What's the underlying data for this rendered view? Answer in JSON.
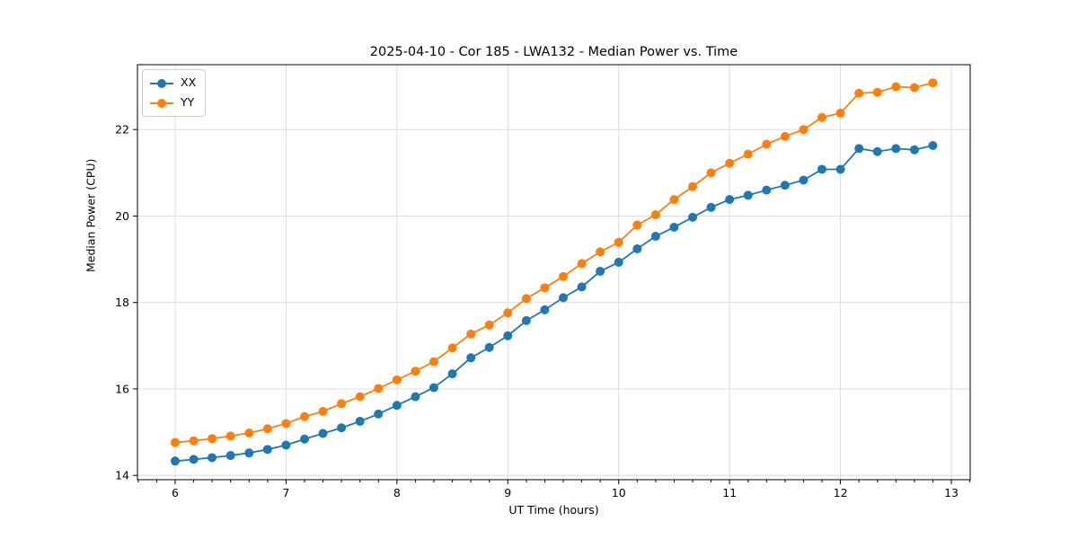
{
  "chart": {
    "title": "2025-04-10 - Cor 185 - LWA132 - Median Power vs. Time",
    "xlabel": "UT Time (hours)",
    "ylabel": "Median Power (CPU)"
  },
  "legend": {
    "position": "upper-left",
    "items": [
      {
        "label": "XX",
        "color": "#1f77b4"
      },
      {
        "label": "YY",
        "color": "#ff7f0e"
      }
    ]
  },
  "colors": {
    "series_xx": "#1f77b4",
    "series_yy": "#ff7f0e",
    "grid": "#dcdcdc",
    "axis": "#000000",
    "background": "#ffffff"
  },
  "chart_data": {
    "type": "line",
    "title": "2025-04-10 - Cor 185 - LWA132 - Median Power vs. Time",
    "xlabel": "UT Time (hours)",
    "ylabel": "Median Power (CPU)",
    "grid": true,
    "legend_position": "upper left",
    "xlim": [
      5.66,
      13.17
    ],
    "ylim": [
      13.9,
      23.5
    ],
    "xticks": [
      6,
      7,
      8,
      9,
      10,
      11,
      12,
      13
    ],
    "yticks": [
      14,
      16,
      18,
      20,
      22
    ],
    "x_minor_tick_step": 0.16667,
    "marker": "circle",
    "x": [
      6.0,
      6.167,
      6.333,
      6.5,
      6.667,
      6.833,
      7.0,
      7.167,
      7.333,
      7.5,
      7.667,
      7.833,
      8.0,
      8.167,
      8.333,
      8.5,
      8.667,
      8.833,
      9.0,
      9.167,
      9.333,
      9.5,
      9.667,
      9.833,
      10.0,
      10.167,
      10.333,
      10.5,
      10.667,
      10.833,
      11.0,
      11.167,
      11.333,
      11.5,
      11.667,
      11.833,
      12.0,
      12.167,
      12.333,
      12.5,
      12.667,
      12.833
    ],
    "series": [
      {
        "name": "XX",
        "color": "#1f77b4",
        "values": [
          14.33,
          14.37,
          14.41,
          14.46,
          14.52,
          14.6,
          14.7,
          14.84,
          14.97,
          15.1,
          15.25,
          15.42,
          15.62,
          15.82,
          16.03,
          16.35,
          16.72,
          16.96,
          17.23,
          17.58,
          17.83,
          18.11,
          18.36,
          18.72,
          18.93,
          19.24,
          19.53,
          19.74,
          19.97,
          20.2,
          20.38,
          20.48,
          20.6,
          20.71,
          20.83,
          21.08,
          21.08,
          21.56,
          21.49,
          21.56,
          21.53,
          21.63
        ]
      },
      {
        "name": "YY",
        "color": "#ff7f0e",
        "values": [
          14.76,
          14.8,
          14.85,
          14.91,
          14.98,
          15.08,
          15.2,
          15.36,
          15.48,
          15.66,
          15.82,
          16.01,
          16.21,
          16.41,
          16.63,
          16.95,
          17.27,
          17.48,
          17.76,
          18.09,
          18.34,
          18.6,
          18.9,
          19.17,
          19.39,
          19.79,
          20.03,
          20.38,
          20.68,
          21.0,
          21.22,
          21.43,
          21.66,
          21.84,
          22.0,
          22.28,
          22.38,
          22.84,
          22.86,
          22.99,
          22.97,
          23.08
        ]
      }
    ]
  }
}
